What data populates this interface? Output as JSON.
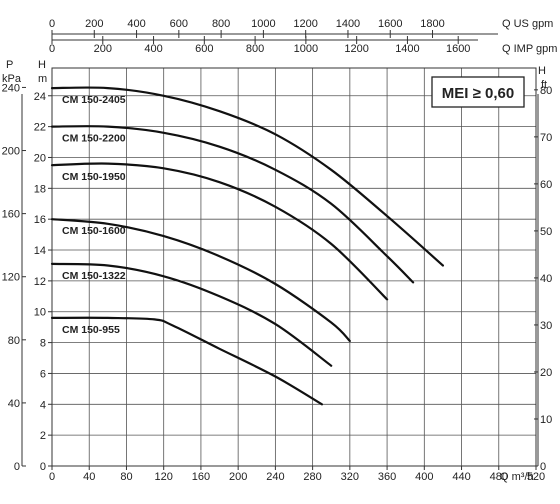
{
  "chart_data": {
    "type": "line",
    "title": "",
    "x_axis": {
      "label": "Q m³/h",
      "ticks": [
        0,
        40,
        80,
        120,
        160,
        200,
        240,
        280,
        320,
        360,
        400,
        440,
        480,
        520
      ],
      "range": [
        0,
        520
      ]
    },
    "top_axis_us": {
      "label": "Q US gpm",
      "ticks": [
        0,
        200,
        400,
        600,
        800,
        1000,
        1200,
        1400,
        1600,
        1800
      ]
    },
    "top_axis_imp": {
      "label": "Q IMP gpm",
      "ticks": [
        0,
        200,
        400,
        600,
        800,
        1000,
        1200,
        1400,
        1600
      ]
    },
    "y_axis_m": {
      "label": "H m",
      "ticks": [
        0,
        2,
        4,
        6,
        8,
        10,
        12,
        14,
        16,
        18,
        20,
        22,
        24
      ],
      "range": [
        0,
        25.8
      ]
    },
    "y_axis_kpa": {
      "label": "P kPa",
      "ticks": [
        0,
        40,
        80,
        120,
        160,
        200,
        240
      ]
    },
    "y_axis_ft": {
      "label": "H ft",
      "ticks": [
        0,
        10,
        20,
        30,
        40,
        50,
        60,
        70,
        80
      ]
    },
    "badge": "MEI ≥ 0,60",
    "grid": true,
    "series": [
      {
        "name": "CM 150-2405",
        "x": [
          0,
          60,
          120,
          180,
          240,
          300,
          360,
          420
        ],
        "y": [
          24.5,
          24.5,
          24.0,
          23.0,
          21.5,
          19.2,
          16.2,
          13.0
        ]
      },
      {
        "name": "CM 150-2200",
        "x": [
          0,
          60,
          120,
          180,
          240,
          300,
          360,
          388
        ],
        "y": [
          22.0,
          22.0,
          21.6,
          20.7,
          19.2,
          17.0,
          13.6,
          11.9
        ]
      },
      {
        "name": "CM 150-1950",
        "x": [
          0,
          60,
          120,
          180,
          240,
          300,
          360
        ],
        "y": [
          19.5,
          19.6,
          19.3,
          18.4,
          16.8,
          14.4,
          10.8
        ]
      },
      {
        "name": "CM 150-1600",
        "x": [
          0,
          60,
          120,
          180,
          240,
          300,
          320
        ],
        "y": [
          16.0,
          15.7,
          14.9,
          13.6,
          11.8,
          9.3,
          8.1
        ]
      },
      {
        "name": "CM 150-1322",
        "x": [
          0,
          60,
          120,
          180,
          240,
          300
        ],
        "y": [
          13.1,
          13.0,
          12.3,
          11.0,
          9.2,
          6.5
        ]
      },
      {
        "name": "CM 150-955",
        "x": [
          0,
          60,
          110,
          130,
          180,
          240,
          290
        ],
        "y": [
          9.6,
          9.6,
          9.5,
          9.1,
          7.6,
          5.8,
          4.0
        ]
      }
    ]
  }
}
